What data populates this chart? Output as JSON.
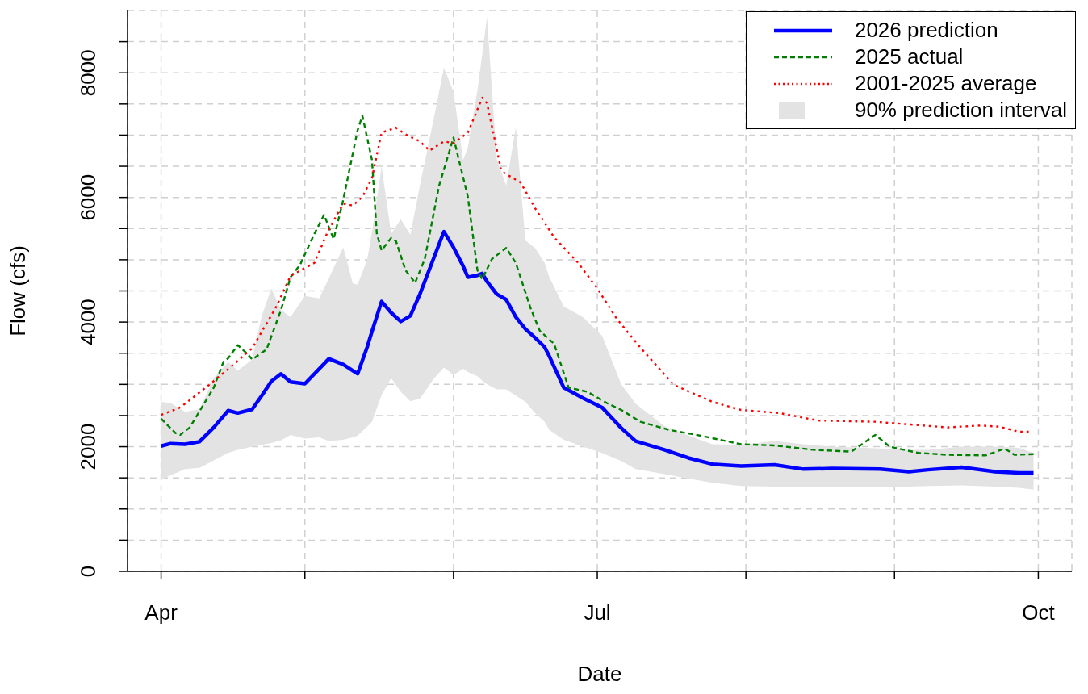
{
  "chart_data": {
    "type": "line",
    "xlabel": "Date",
    "ylabel": "Flow (cfs)",
    "xlim": [
      "--03-25",
      "--10-08"
    ],
    "xticks": [
      {
        "value": "--04-01",
        "label": "Apr"
      },
      {
        "value": "--05-01",
        "label": null
      },
      {
        "value": "--06-01",
        "label": null
      },
      {
        "value": "--07-01",
        "label": "Jul"
      },
      {
        "value": "--08-01",
        "label": null
      },
      {
        "value": "--09-01",
        "label": null
      },
      {
        "value": "--10-01",
        "label": "Oct"
      }
    ],
    "ylim": [
      0,
      9000
    ],
    "yticks": [
      0,
      {
        "value": 500,
        "label": null
      },
      {
        "value": 1000,
        "label": null
      },
      {
        "value": 1500,
        "label": null
      },
      2000,
      {
        "value": 2500,
        "label": null
      },
      {
        "value": 3000,
        "label": null
      },
      {
        "value": 3500,
        "label": null
      },
      4000,
      {
        "value": 4500,
        "label": null
      },
      {
        "value": 5000,
        "label": null
      },
      {
        "value": 5500,
        "label": null
      },
      6000,
      {
        "value": 6500,
        "label": null
      },
      {
        "value": 7000,
        "label": null
      },
      {
        "value": 7500,
        "label": null
      },
      8000,
      {
        "value": 8500,
        "label": null
      }
    ],
    "grid": true,
    "legend": "top right",
    "annotations": [
      "90% prediction interval"
    ],
    "series": [
      {
        "name": "2026 prediction",
        "color": "#0000ff",
        "line_style": "solid",
        "x": [
          "--04-01",
          "--04-03",
          "--04-06",
          "--04-09",
          "--04-12",
          "--04-15",
          "--04-17",
          "--04-20",
          "--04-22",
          "--04-24",
          "--04-26",
          "--04-28",
          "--05-01",
          "--05-04",
          "--05-06",
          "--05-09",
          "--05-11",
          "--05-12",
          "--05-14",
          "--05-15",
          "--05-17",
          "--05-19",
          "--05-21",
          "--05-23",
          "--05-25",
          "--05-28",
          "--05-30",
          "--06-01",
          "--06-03",
          "--06-04",
          "--06-06",
          "--06-07",
          "--06-08",
          "--06-10",
          "--06-12",
          "--06-14",
          "--06-16",
          "--06-18",
          "--06-20",
          "--06-21",
          "--06-24",
          "--06-28",
          "--07-02",
          "--07-06",
          "--07-09",
          "--07-15",
          "--07-20",
          "--07-25",
          "--07-31",
          "--08-07",
          "--08-13",
          "--08-19",
          "--08-29",
          "--09-04",
          "--09-08",
          "--09-15",
          "--09-22",
          "--09-27",
          "--09-30"
        ],
        "values": [
          2010,
          2050,
          2040,
          2080,
          2310,
          2580,
          2540,
          2600,
          2820,
          3050,
          3170,
          3040,
          3010,
          3250,
          3410,
          3320,
          3220,
          3170,
          3600,
          3850,
          4330,
          4150,
          4010,
          4100,
          4450,
          5050,
          5450,
          5200,
          4900,
          4720,
          4750,
          4780,
          4650,
          4450,
          4360,
          4080,
          3890,
          3750,
          3600,
          3450,
          2950,
          2780,
          2630,
          2300,
          2090,
          1950,
          1820,
          1720,
          1690,
          1710,
          1640,
          1650,
          1640,
          1600,
          1630,
          1670,
          1600,
          1580,
          1580
        ],
        "lower": [
          1470,
          1540,
          1640,
          1660,
          1780,
          1900,
          1950,
          2000,
          2030,
          2060,
          2100,
          2190,
          2130,
          2150,
          2090,
          2110,
          2150,
          2180,
          2320,
          2400,
          2830,
          3100,
          2880,
          2730,
          2770,
          3100,
          3270,
          3150,
          3250,
          3200,
          3130,
          3060,
          3000,
          2920,
          2920,
          2820,
          2720,
          2540,
          2400,
          2270,
          2110,
          2000,
          1900,
          1770,
          1640,
          1560,
          1490,
          1420,
          1370,
          1360,
          1360,
          1360,
          1360,
          1360,
          1370,
          1380,
          1360,
          1340,
          1310
        ],
        "upper": [
          2720,
          2700,
          2560,
          2600,
          3100,
          3360,
          3220,
          3400,
          4100,
          4540,
          4200,
          4080,
          4420,
          4380,
          4700,
          5200,
          4620,
          4600,
          5000,
          5450,
          6490,
          5420,
          5650,
          5400,
          6190,
          7310,
          8080,
          7700,
          6600,
          6800,
          7720,
          8300,
          8900,
          6620,
          6190,
          7130,
          5310,
          5190,
          4950,
          4720,
          4250,
          4080,
          3780,
          3000,
          2690,
          2330,
          2180,
          2040,
          2030,
          2090,
          2040,
          2000,
          1970,
          1950,
          1950,
          2000,
          2000,
          1980,
          1900
        ]
      },
      {
        "name": "2025 actual",
        "color": "#008000",
        "line_style": "dashed",
        "x": [
          "--04-01",
          "--04-04",
          "--04-05",
          "--04-07",
          "--04-12",
          "--04-14",
          "--04-15",
          "--04-17",
          "--04-19",
          "--04-20",
          "--04-23",
          "--04-26",
          "--04-28",
          "--04-30",
          "--05-03",
          "--05-05",
          "--05-07",
          "--05-09",
          "--05-12",
          "--05-13",
          "--05-15",
          "--05-16",
          "--05-17",
          "--05-19",
          "--05-20",
          "--05-22",
          "--05-24",
          "--05-26",
          "--05-29",
          "--06-01",
          "--06-04",
          "--06-06",
          "--06-07",
          "--06-09",
          "--06-12",
          "--06-14",
          "--06-17",
          "--06-19",
          "--06-22",
          "--06-25",
          "--06-29",
          "--07-03",
          "--07-06",
          "--07-10",
          "--07-16",
          "--07-23",
          "--07-31",
          "--08-07",
          "--08-15",
          "--08-23",
          "--08-28",
          "--08-31",
          "--09-06",
          "--09-12",
          "--09-20",
          "--09-24",
          "--09-26",
          "--09-30"
        ],
        "values": [
          2450,
          2220,
          2190,
          2310,
          2950,
          3360,
          3420,
          3630,
          3490,
          3400,
          3560,
          4190,
          4720,
          4920,
          5420,
          5720,
          5330,
          5960,
          7080,
          7310,
          6600,
          5420,
          5150,
          5350,
          5300,
          4830,
          4630,
          5010,
          6190,
          6960,
          6010,
          4830,
          4690,
          5010,
          5190,
          4950,
          4240,
          3860,
          3650,
          2950,
          2880,
          2700,
          2590,
          2400,
          2270,
          2170,
          2040,
          2020,
          1950,
          1920,
          2190,
          2000,
          1900,
          1870,
          1860,
          1970,
          1870,
          1880
        ]
      },
      {
        "name": "2001-2025 average",
        "color": "#ff0000",
        "line_style": "dotted",
        "x": [
          "--04-01",
          "--04-05",
          "--04-11",
          "--04-16",
          "--04-20",
          "--04-25",
          "--04-28",
          "--05-03",
          "--05-06",
          "--05-09",
          "--05-11",
          "--05-13",
          "--05-15",
          "--05-17",
          "--05-20",
          "--05-22",
          "--05-25",
          "--05-27",
          "--05-30",
          "--06-01",
          "--06-04",
          "--06-07",
          "--06-08",
          "--06-11",
          "--06-15",
          "--06-18",
          "--06-22",
          "--06-27",
          "--07-01",
          "--07-05",
          "--07-10",
          "--07-17",
          "--07-25",
          "--07-31",
          "--08-08",
          "--08-16",
          "--08-28",
          "--09-12",
          "--09-19",
          "--09-23",
          "--09-27",
          "--09-29"
        ],
        "values": [
          2510,
          2630,
          2990,
          3310,
          3580,
          4240,
          4740,
          4950,
          5490,
          5900,
          5870,
          6010,
          6310,
          7040,
          7120,
          7010,
          6900,
          6750,
          6900,
          6870,
          7040,
          7600,
          7510,
          6420,
          6240,
          5830,
          5360,
          4950,
          4540,
          4060,
          3590,
          2990,
          2720,
          2590,
          2540,
          2420,
          2400,
          2310,
          2340,
          2320,
          2240,
          2240
        ]
      }
    ]
  }
}
